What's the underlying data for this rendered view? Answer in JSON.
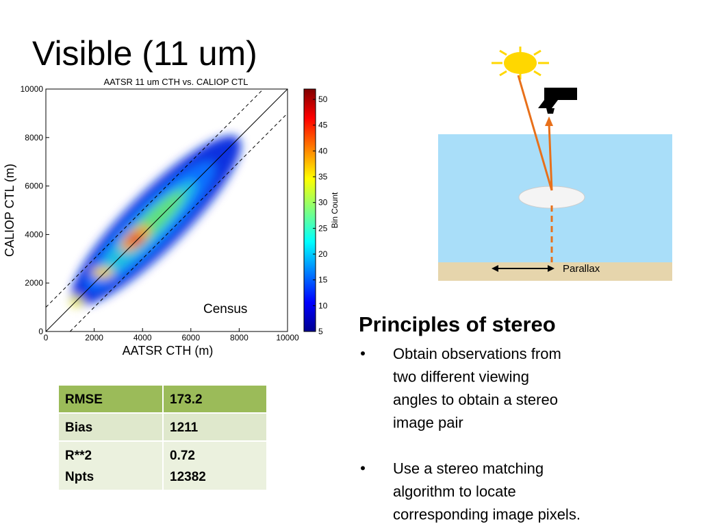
{
  "title": "Visible (11 um)",
  "chart_data": {
    "type": "hist2d",
    "title": "AATSR 11 um CTH vs. CALIOP CTL",
    "x_label": "AATSR CTH (m)",
    "y_label": "CALIOP CTL (m)",
    "xlim": [
      0,
      10000
    ],
    "ylim": [
      0,
      10000
    ],
    "xticks": [
      0,
      2000,
      4000,
      6000,
      8000,
      10000
    ],
    "yticks": [
      0,
      2000,
      4000,
      6000,
      8000,
      10000
    ],
    "offset_lines": [
      -1000,
      1000
    ],
    "annotation": "Census",
    "colorbar": {
      "label": "Bin Count",
      "lim": [
        5,
        52
      ],
      "ticks": [
        5,
        10,
        15,
        20,
        25,
        30,
        35,
        40,
        45,
        50
      ]
    }
  },
  "table": {
    "rows": [
      [
        [
          "RMSE"
        ],
        [
          "173.2"
        ]
      ],
      [
        [
          "Bias"
        ],
        [
          "1211"
        ]
      ],
      [
        [
          "R**2",
          "Npts"
        ],
        [
          "0.72",
          "12382"
        ]
      ]
    ]
  },
  "diagram": {
    "label": "Parallax"
  },
  "stereo": {
    "heading": "Principles of stereo",
    "bullets": [
      [
        "Obtain observations from",
        "two different viewing",
        "angles to obtain a stereo",
        "image pair"
      ],
      [
        "Use a stereo matching",
        "algorithm to locate",
        "corresponding image pixels."
      ]
    ]
  }
}
